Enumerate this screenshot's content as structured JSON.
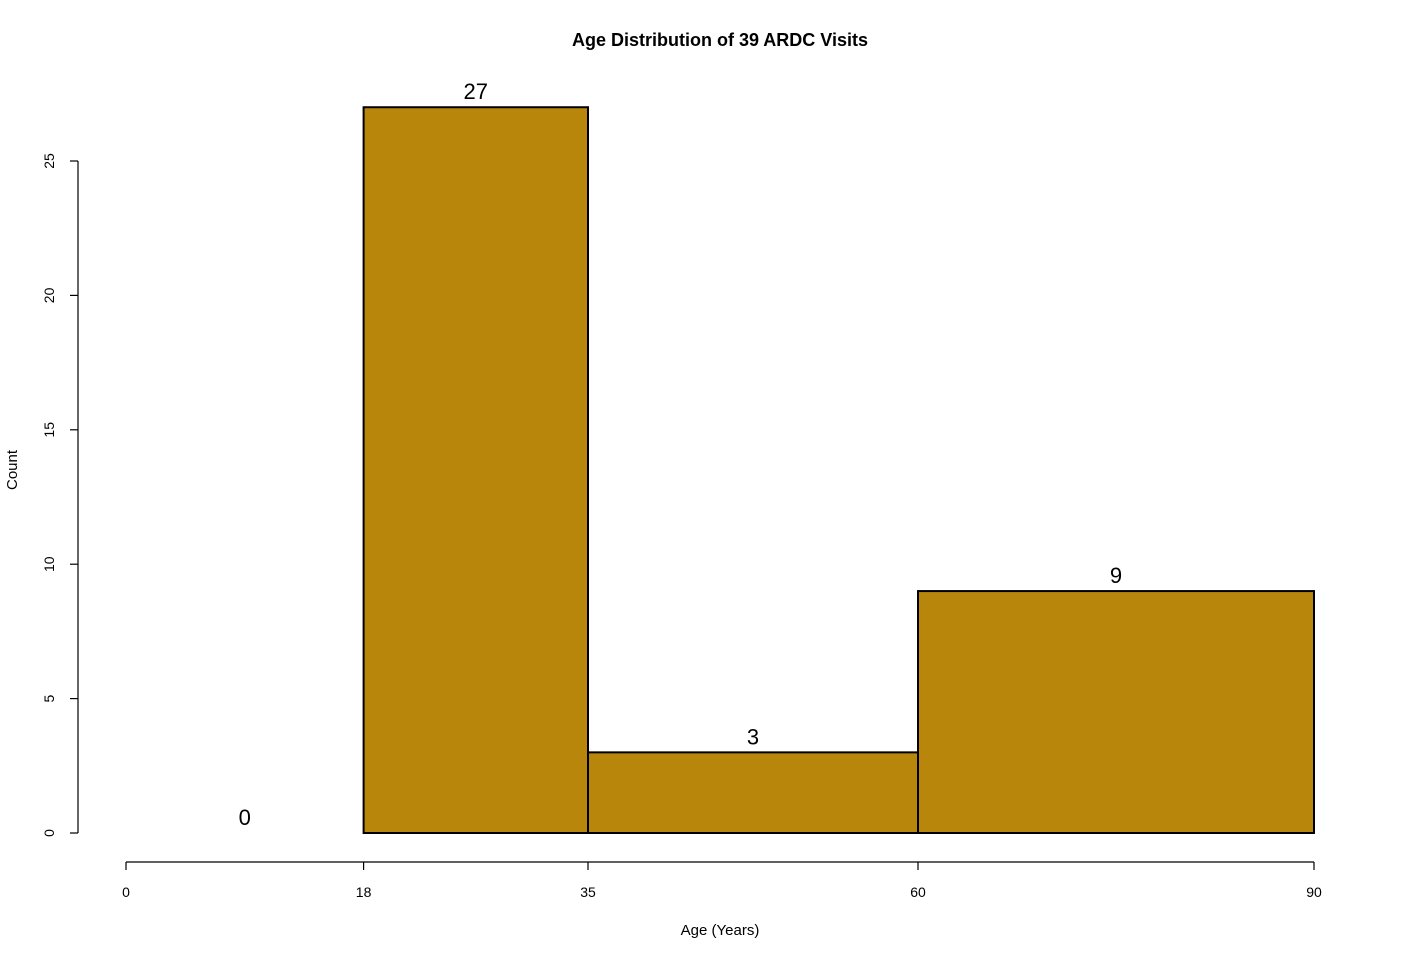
{
  "chart_data": {
    "type": "bar",
    "title": "Age Distribution of  39  ARDC Visits",
    "xlabel": "Age (Years)",
    "ylabel": "Count",
    "bins": [
      {
        "start": 0,
        "end": 18,
        "value": 0
      },
      {
        "start": 18,
        "end": 35,
        "value": 27
      },
      {
        "start": 35,
        "end": 60,
        "value": 3
      },
      {
        "start": 60,
        "end": 90,
        "value": 9
      }
    ],
    "x_ticks": [
      0,
      18,
      35,
      60,
      90
    ],
    "y_ticks": [
      0,
      5,
      10,
      15,
      20,
      25
    ],
    "xlim": [
      0,
      90
    ],
    "ylim": [
      0,
      27
    ],
    "grid": false,
    "bar_color": "#b8860b",
    "bar_border_color": "#000000"
  }
}
